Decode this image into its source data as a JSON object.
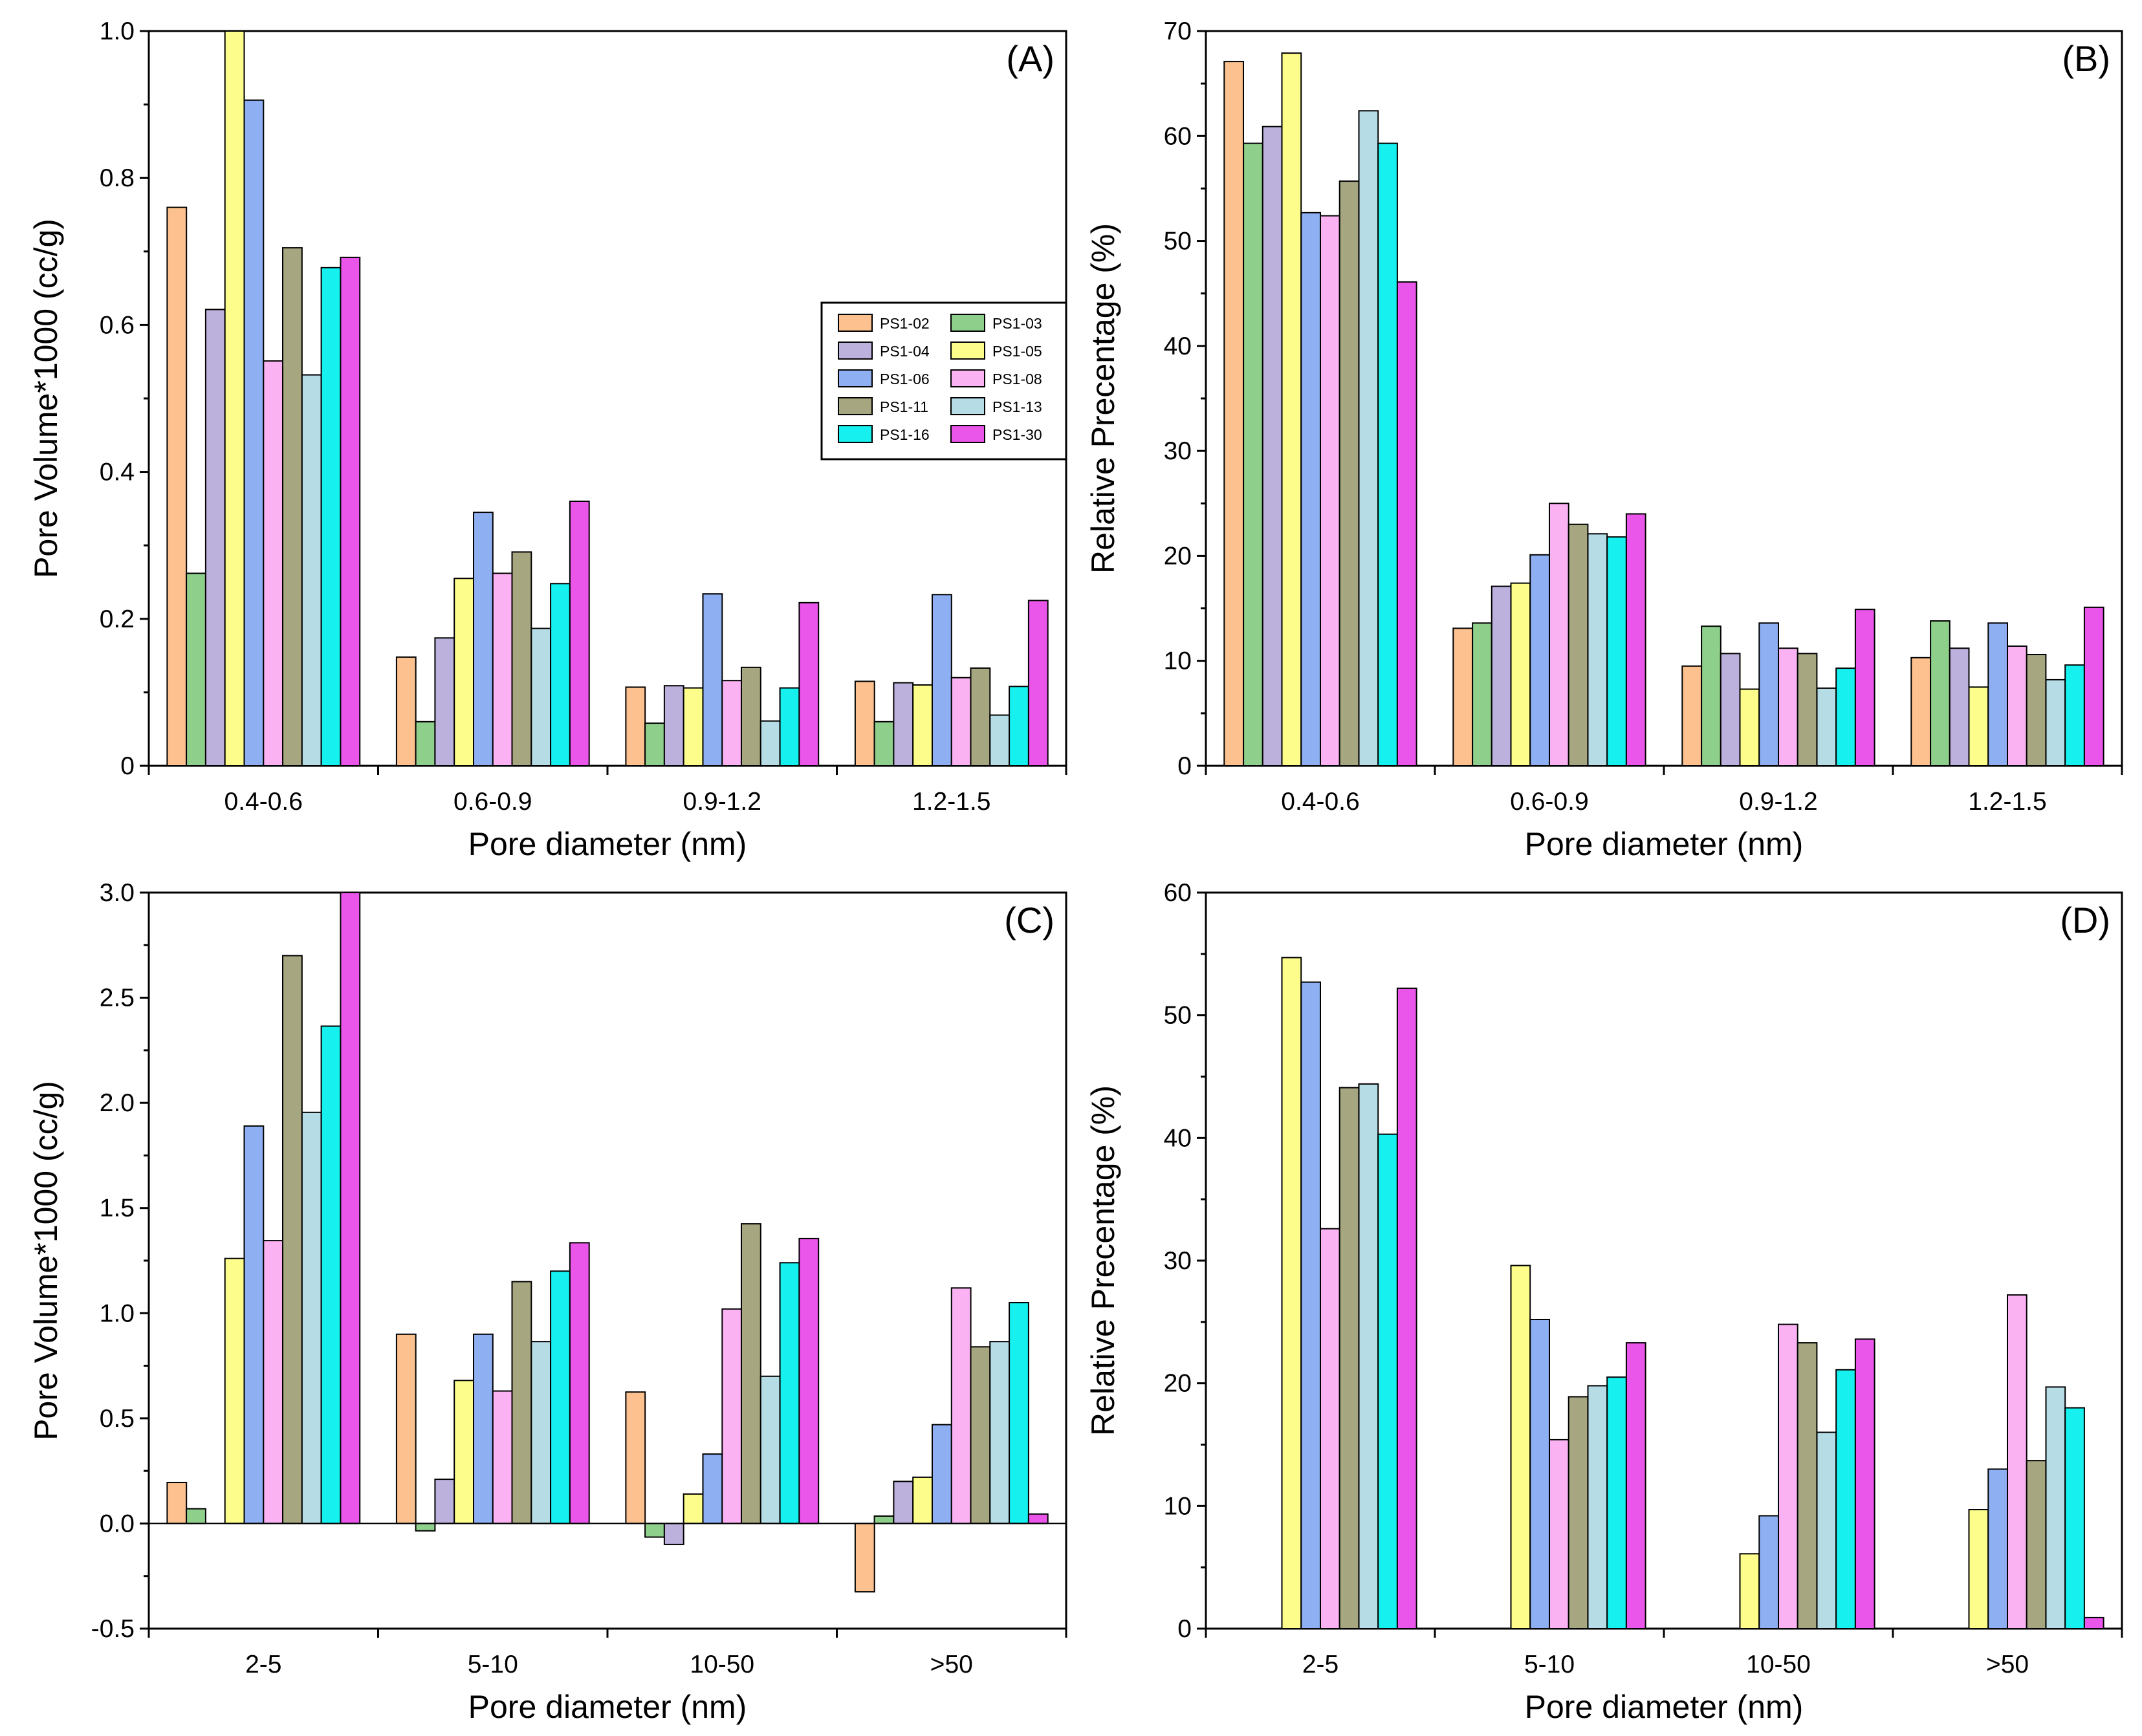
{
  "colors": {
    "PS1-02": "#fcc18e",
    "PS1-03": "#8fcf8c",
    "PS1-04": "#bcb0dc",
    "PS1-05": "#fdfd8c",
    "PS1-06": "#8eb0f2",
    "PS1-08": "#fbb2f2",
    "PS1-11": "#a6a680",
    "PS1-13": "#b6dde6",
    "PS1-16": "#16f1f0",
    "PS1-30": "#ea56ea"
  },
  "legend": {
    "entries": [
      "PS1-02",
      "PS1-03",
      "PS1-04",
      "PS1-05",
      "PS1-06",
      "PS1-08",
      "PS1-11",
      "PS1-13",
      "PS1-16",
      "PS1-30"
    ]
  },
  "chart_data": [
    {
      "id": "A",
      "tag": "(A)",
      "type": "bar",
      "title": "",
      "xlabel": "Pore diameter (nm)",
      "ylabel": "Pore Volume*1000 (cc/g)",
      "ylim": [
        0,
        1.0
      ],
      "yticks": [
        0,
        0.2,
        0.4,
        0.6,
        0.8,
        1.0
      ],
      "ytick_labels": [
        "0",
        "0.2",
        "0.4",
        "0.6",
        "0.8",
        "1.0"
      ],
      "categories": [
        "0.4-0.6",
        "0.6-0.9",
        "0.9-1.2",
        "1.2-1.5"
      ],
      "legend_position": "center-right",
      "series": [
        {
          "name": "PS1-02",
          "values": [
            0.76,
            0.148,
            0.107,
            0.115
          ]
        },
        {
          "name": "PS1-03",
          "values": [
            0.262,
            0.06,
            0.058,
            0.06
          ]
        },
        {
          "name": "PS1-04",
          "values": [
            0.621,
            0.174,
            0.109,
            0.113
          ]
        },
        {
          "name": "PS1-05",
          "values": [
            1.0,
            0.255,
            0.106,
            0.11
          ]
        },
        {
          "name": "PS1-06",
          "values": [
            0.906,
            0.345,
            0.234,
            0.233
          ]
        },
        {
          "name": "PS1-08",
          "values": [
            0.551,
            0.262,
            0.116,
            0.12
          ]
        },
        {
          "name": "PS1-11",
          "values": [
            0.705,
            0.291,
            0.134,
            0.133
          ]
        },
        {
          "name": "PS1-13",
          "values": [
            0.532,
            0.187,
            0.061,
            0.069
          ]
        },
        {
          "name": "PS1-16",
          "values": [
            0.678,
            0.248,
            0.106,
            0.108
          ]
        },
        {
          "name": "PS1-30",
          "values": [
            0.692,
            0.36,
            0.222,
            0.225
          ]
        }
      ]
    },
    {
      "id": "B",
      "tag": "(B)",
      "type": "bar",
      "title": "",
      "xlabel": "Pore diameter (nm)",
      "ylabel": "Relative Precentage (%)",
      "ylim": [
        0,
        70
      ],
      "yticks": [
        0,
        10,
        20,
        30,
        40,
        50,
        60,
        70
      ],
      "ytick_labels": [
        "0",
        "10",
        "20",
        "30",
        "40",
        "50",
        "60",
        "70"
      ],
      "categories": [
        "0.4-0.6",
        "0.6-0.9",
        "0.9-1.2",
        "1.2-1.5"
      ],
      "series": [
        {
          "name": "PS1-02",
          "values": [
            67.1,
            13.1,
            9.5,
            10.3
          ]
        },
        {
          "name": "PS1-03",
          "values": [
            59.3,
            13.6,
            13.3,
            13.8
          ]
        },
        {
          "name": "PS1-04",
          "values": [
            60.9,
            17.1,
            10.7,
            11.2
          ]
        },
        {
          "name": "PS1-05",
          "values": [
            67.9,
            17.4,
            7.3,
            7.5
          ]
        },
        {
          "name": "PS1-06",
          "values": [
            52.7,
            20.1,
            13.6,
            13.6
          ]
        },
        {
          "name": "PS1-08",
          "values": [
            52.4,
            25.0,
            11.2,
            11.4
          ]
        },
        {
          "name": "PS1-11",
          "values": [
            55.7,
            23.0,
            10.7,
            10.6
          ]
        },
        {
          "name": "PS1-13",
          "values": [
            62.4,
            22.1,
            7.4,
            8.2
          ]
        },
        {
          "name": "PS1-16",
          "values": [
            59.3,
            21.8,
            9.3,
            9.6
          ]
        },
        {
          "name": "PS1-30",
          "values": [
            46.1,
            24.0,
            14.9,
            15.1
          ]
        }
      ]
    },
    {
      "id": "C",
      "tag": "(C)",
      "type": "bar",
      "title": "",
      "xlabel": "Pore diameter (nm)",
      "ylabel": "Pore Volume*1000 (cc/g)",
      "ylim": [
        -0.5,
        3.0
      ],
      "yticks": [
        -0.5,
        0,
        0.5,
        1.0,
        1.5,
        2.0,
        2.5,
        3.0
      ],
      "ytick_labels": [
        "-0.5",
        "0.0",
        "0.5",
        "1.0",
        "1.5",
        "2.0",
        "2.5",
        "3.0"
      ],
      "zero_line": true,
      "categories": [
        "2-5",
        "5-10",
        "10-50",
        ">50"
      ],
      "series": [
        {
          "name": "PS1-02",
          "values": [
            0.195,
            0.9,
            0.625,
            -0.325
          ]
        },
        {
          "name": "PS1-03",
          "values": [
            0.07,
            -0.035,
            -0.065,
            0.035
          ]
        },
        {
          "name": "PS1-04",
          "values": [
            0,
            0.21,
            -0.1,
            0.2
          ]
        },
        {
          "name": "PS1-05",
          "values": [
            1.26,
            0.68,
            0.14,
            0.22
          ]
        },
        {
          "name": "PS1-06",
          "values": [
            1.89,
            0.9,
            0.33,
            0.47
          ]
        },
        {
          "name": "PS1-08",
          "values": [
            1.345,
            0.63,
            1.02,
            1.12
          ]
        },
        {
          "name": "PS1-11",
          "values": [
            2.7,
            1.15,
            1.425,
            0.84
          ]
        },
        {
          "name": "PS1-13",
          "values": [
            1.955,
            0.865,
            0.7,
            0.865
          ]
        },
        {
          "name": "PS1-16",
          "values": [
            2.365,
            1.2,
            1.24,
            1.05
          ]
        },
        {
          "name": "PS1-30",
          "values": [
            3.0,
            1.335,
            1.355,
            0.045
          ]
        }
      ]
    },
    {
      "id": "D",
      "tag": "(D)",
      "type": "bar",
      "title": "",
      "xlabel": "Pore diameter (nm)",
      "ylabel": "Relative Precentage (%)",
      "ylim": [
        0,
        60
      ],
      "yticks": [
        0,
        10,
        20,
        30,
        40,
        50,
        60
      ],
      "ytick_labels": [
        "0",
        "10",
        "20",
        "30",
        "40",
        "50",
        "60"
      ],
      "categories": [
        "2-5",
        "5-10",
        "10-50",
        ">50"
      ],
      "series": [
        {
          "name": "PS1-02",
          "values": [
            0,
            0,
            0,
            0
          ]
        },
        {
          "name": "PS1-03",
          "values": [
            0,
            0,
            0,
            0
          ]
        },
        {
          "name": "PS1-04",
          "values": [
            0,
            0,
            0,
            0
          ]
        },
        {
          "name": "PS1-05",
          "values": [
            54.7,
            29.6,
            6.1,
            9.7
          ]
        },
        {
          "name": "PS1-06",
          "values": [
            52.7,
            25.2,
            9.2,
            13.0
          ]
        },
        {
          "name": "PS1-08",
          "values": [
            32.6,
            15.4,
            24.8,
            27.2
          ]
        },
        {
          "name": "PS1-11",
          "values": [
            44.1,
            18.9,
            23.3,
            13.7
          ]
        },
        {
          "name": "PS1-13",
          "values": [
            44.4,
            19.8,
            16.0,
            19.7
          ]
        },
        {
          "name": "PS1-16",
          "values": [
            40.3,
            20.5,
            21.1,
            18.0
          ]
        },
        {
          "name": "PS1-30",
          "values": [
            52.2,
            23.3,
            23.6,
            0.9
          ]
        }
      ]
    }
  ]
}
